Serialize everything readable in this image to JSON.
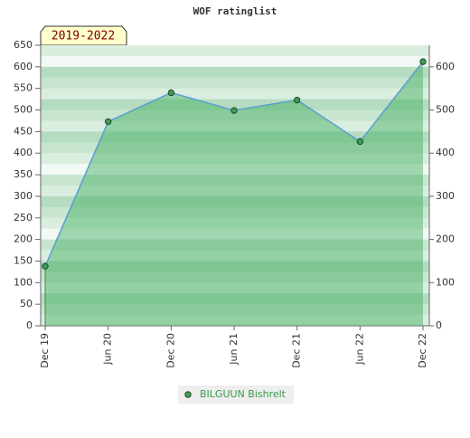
{
  "chart_data": {
    "type": "line",
    "title": "WOF ratinglist",
    "badge": "2019-2022",
    "categories": [
      "Dec 19",
      "Jun 20",
      "Dec 20",
      "Jun 21",
      "Dec 21",
      "Jun 22",
      "Dec 22"
    ],
    "series": [
      {
        "name": "BILGUUN Bishrelt",
        "color": "#5b9fd0",
        "values": [
          138,
          473,
          540,
          499,
          523,
          427,
          612
        ]
      }
    ],
    "ylim": [
      0,
      650
    ],
    "yticks": [
      0,
      50,
      100,
      150,
      200,
      250,
      300,
      350,
      400,
      450,
      500,
      550,
      600,
      650
    ],
    "y2lim": [
      0,
      650
    ],
    "y2ticks": [
      0,
      100,
      200,
      300,
      400,
      500,
      600
    ]
  }
}
